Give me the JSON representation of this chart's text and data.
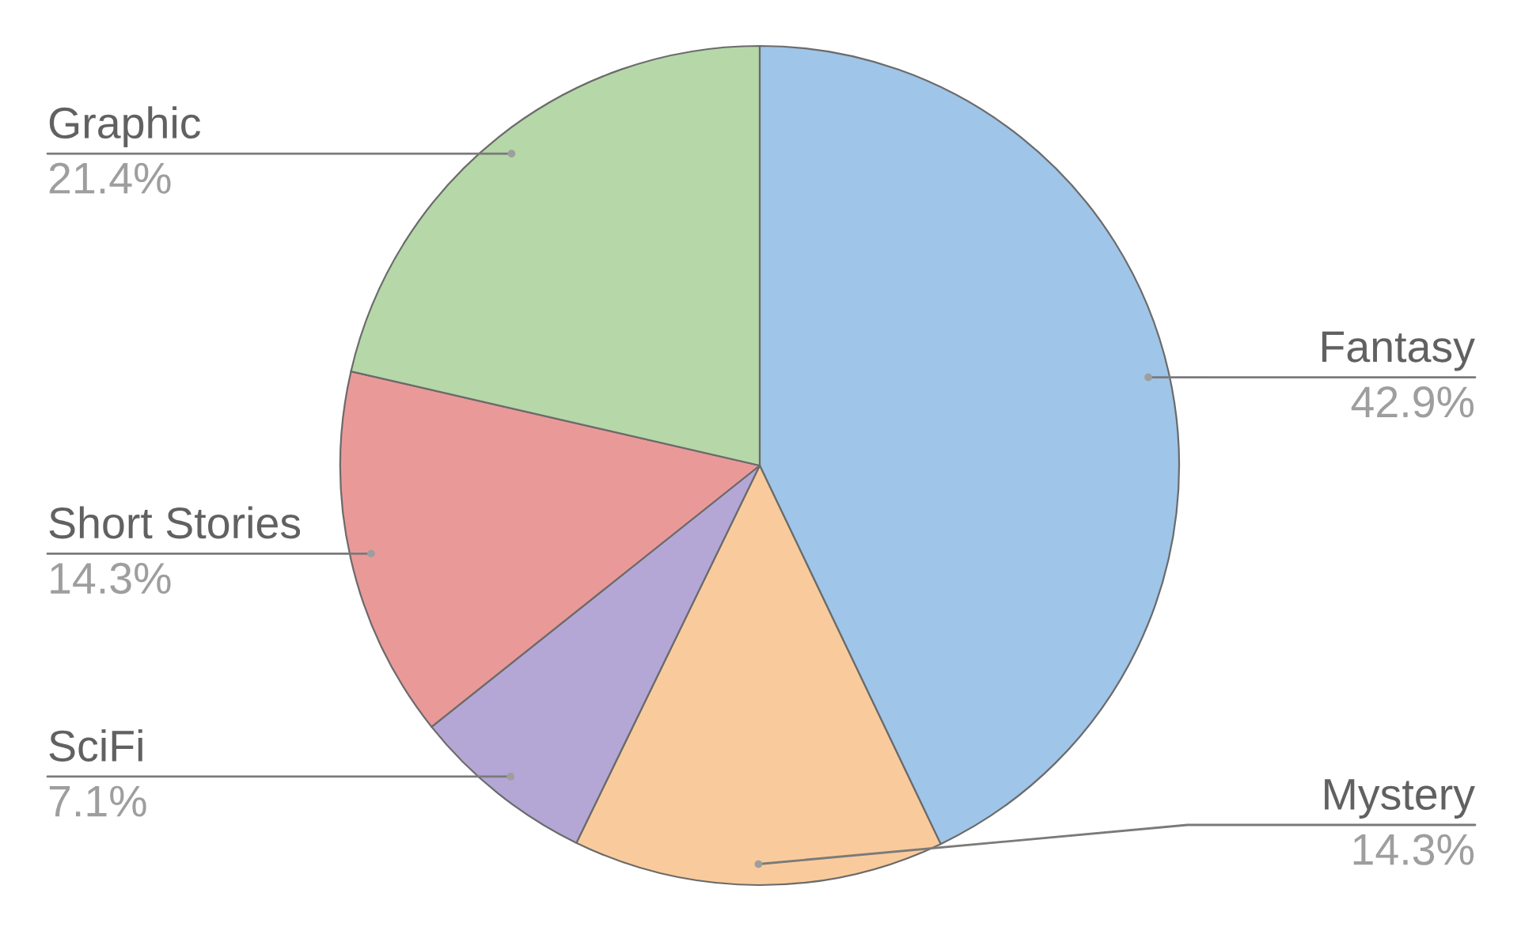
{
  "chart_data": {
    "type": "pie",
    "categories": [
      "Fantasy",
      "Mystery",
      "SciFi",
      "Short Stories",
      "Graphic"
    ],
    "values": [
      42.9,
      14.3,
      7.1,
      14.3,
      21.4
    ],
    "value_labels": [
      "42.9%",
      "14.3%",
      "7.1%",
      "14.3%",
      "21.4%"
    ],
    "colors": [
      "#9fc5e8",
      "#f9cb9c",
      "#b4a7d6",
      "#ea9999",
      "#b6d7a8"
    ]
  }
}
